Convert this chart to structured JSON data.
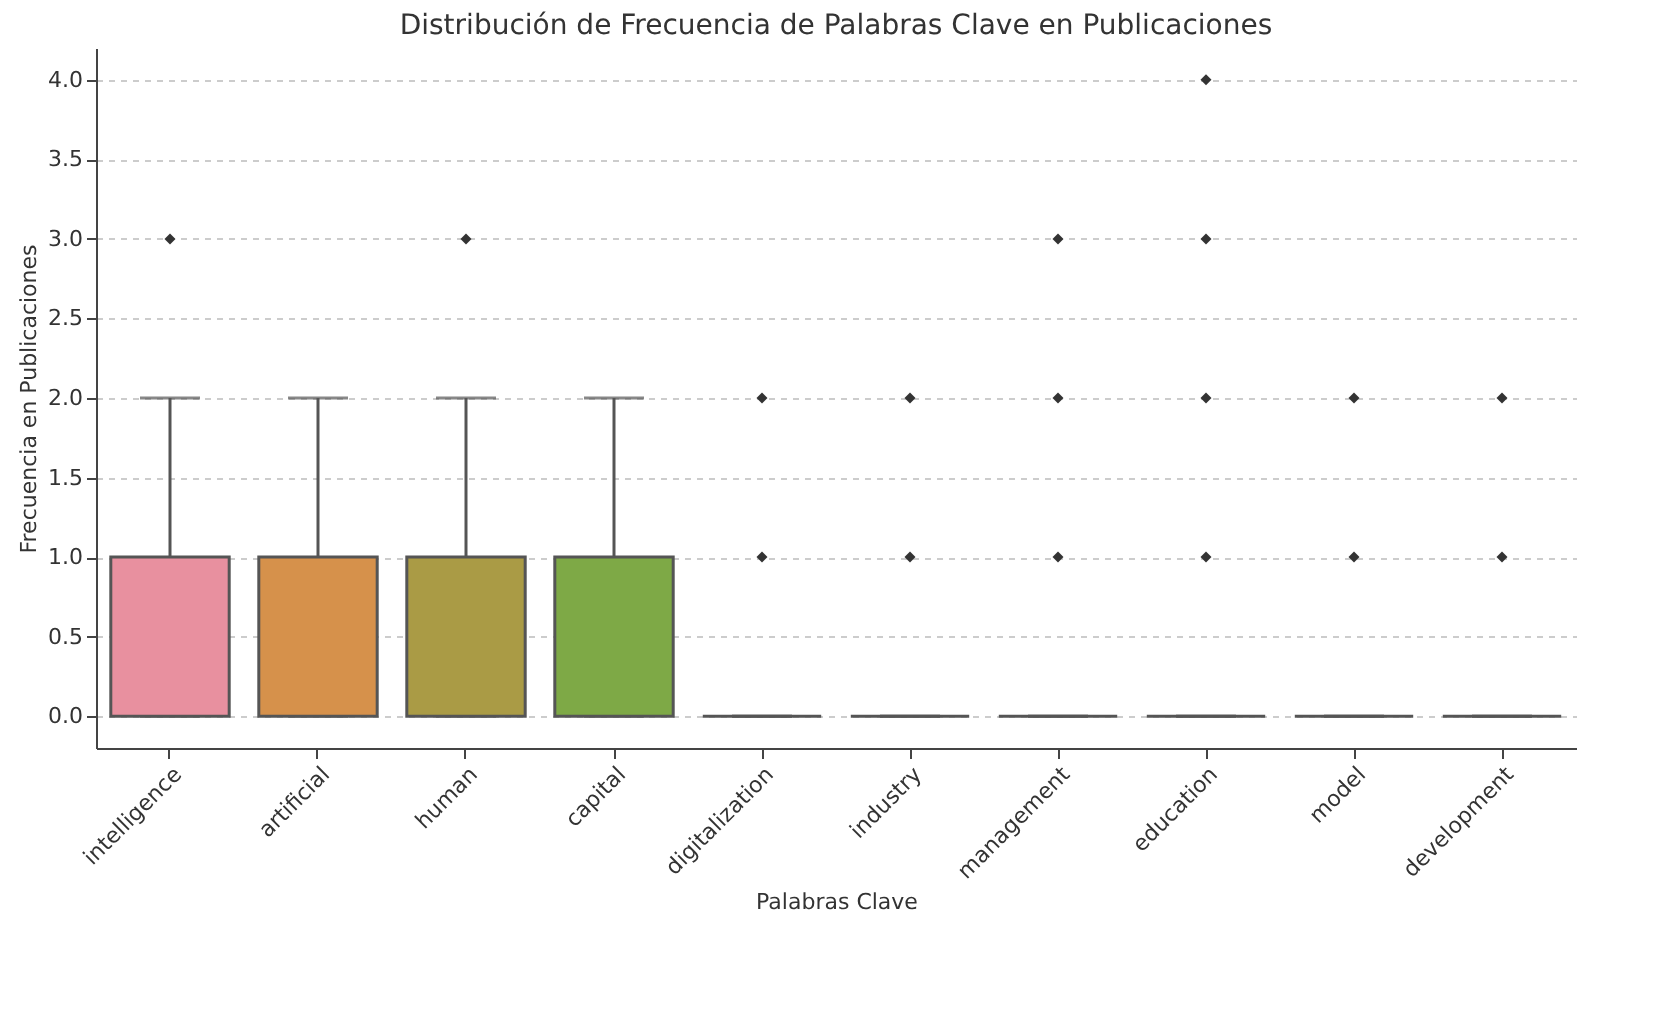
{
  "chart_data": {
    "type": "box",
    "title": "Distribución de Frecuencia de Palabras Clave en Publicaciones",
    "xlabel": "Palabras Clave",
    "ylabel": "Frecuencia en Publicaciones",
    "categories": [
      "intelligence",
      "artificial",
      "human",
      "capital",
      "digitalization",
      "industry",
      "management",
      "education",
      "model",
      "development"
    ],
    "boxes": [
      {
        "low": 0,
        "q1": 0,
        "median": 0,
        "q3": 1,
        "high": 2,
        "outliers": [
          3
        ]
      },
      {
        "low": 0,
        "q1": 0,
        "median": 0,
        "q3": 1,
        "high": 2
      },
      {
        "low": 0,
        "q1": 0,
        "median": 0,
        "q3": 1,
        "high": 2,
        "outliers": [
          3
        ]
      },
      {
        "low": 0,
        "q1": 0,
        "median": 0,
        "q3": 1,
        "high": 2
      },
      {
        "low": 0,
        "q1": 0,
        "median": 0,
        "q3": 0,
        "high": 0,
        "outliers": [
          1,
          2
        ]
      },
      {
        "low": 0,
        "q1": 0,
        "median": 0,
        "q3": 0,
        "high": 0,
        "outliers": [
          1,
          2
        ]
      },
      {
        "low": 0,
        "q1": 0,
        "median": 0,
        "q3": 0,
        "high": 0,
        "outliers": [
          1,
          2,
          3
        ]
      },
      {
        "low": 0,
        "q1": 0,
        "median": 0,
        "q3": 0,
        "high": 0,
        "outliers": [
          1,
          2,
          3,
          4
        ]
      },
      {
        "low": 0,
        "q1": 0,
        "median": 0,
        "q3": 0,
        "high": 0,
        "outliers": [
          1,
          2
        ]
      },
      {
        "low": 0,
        "q1": 0,
        "median": 0,
        "q3": 0,
        "high": 0,
        "outliers": [
          1,
          2
        ]
      }
    ],
    "colors": [
      "#e8909f",
      "#d6914b",
      "#aa9b45",
      "#7ea946",
      null,
      null,
      null,
      null,
      null,
      null
    ],
    "ylim": [
      -0.2,
      4.2
    ],
    "yticks": [
      {
        "value": 0,
        "label": "0.0"
      },
      {
        "value": 0.5,
        "label": "0.5"
      },
      {
        "value": 1,
        "label": "1.0"
      },
      {
        "value": 1.5,
        "label": "1.5"
      },
      {
        "value": 2,
        "label": "2.0"
      },
      {
        "value": 2.5,
        "label": "2.5"
      },
      {
        "value": 3,
        "label": "3.0"
      },
      {
        "value": 3.5,
        "label": "3.5"
      },
      {
        "value": 4,
        "label": "4.0"
      }
    ],
    "grid": "y",
    "marker": "diamond"
  }
}
